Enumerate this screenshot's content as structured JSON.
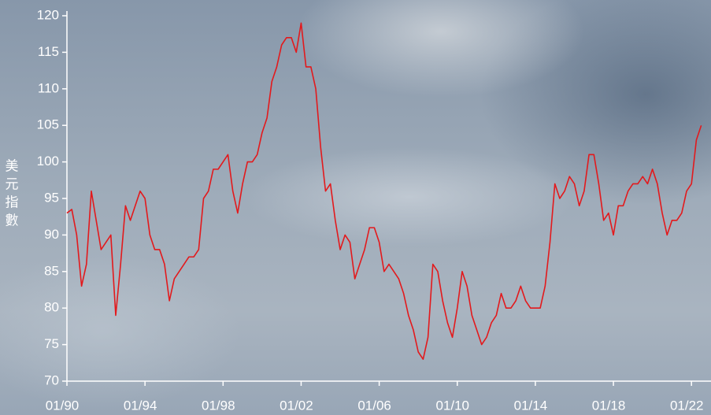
{
  "chart_data": {
    "type": "line",
    "y_label": [
      "美",
      "元",
      "指",
      "數"
    ],
    "x": [
      1990,
      1990.25,
      1990.5,
      1990.75,
      1991,
      1991.25,
      1991.5,
      1991.75,
      1992,
      1992.25,
      1992.5,
      1992.75,
      1993,
      1993.25,
      1993.5,
      1993.75,
      1994,
      1994.25,
      1994.5,
      1994.75,
      1995,
      1995.25,
      1995.5,
      1995.75,
      1996,
      1996.25,
      1996.5,
      1996.75,
      1997,
      1997.25,
      1997.5,
      1997.75,
      1998,
      1998.25,
      1998.5,
      1998.75,
      1999,
      1999.25,
      1999.5,
      1999.75,
      2000,
      2000.25,
      2000.5,
      2000.75,
      2001,
      2001.25,
      2001.5,
      2001.75,
      2002,
      2002.25,
      2002.5,
      2002.75,
      2003,
      2003.25,
      2003.5,
      2003.75,
      2004,
      2004.25,
      2004.5,
      2004.75,
      2005,
      2005.25,
      2005.5,
      2005.75,
      2006,
      2006.25,
      2006.5,
      2006.75,
      2007,
      2007.25,
      2007.5,
      2007.75,
      2008,
      2008.25,
      2008.5,
      2008.75,
      2009,
      2009.25,
      2009.5,
      2009.75,
      2010,
      2010.25,
      2010.5,
      2010.75,
      2011,
      2011.25,
      2011.5,
      2011.75,
      2012,
      2012.25,
      2012.5,
      2012.75,
      2013,
      2013.25,
      2013.5,
      2013.75,
      2014,
      2014.25,
      2014.5,
      2014.75,
      2015,
      2015.25,
      2015.5,
      2015.75,
      2016,
      2016.25,
      2016.5,
      2016.75,
      2017,
      2017.25,
      2017.5,
      2017.75,
      2018,
      2018.25,
      2018.5,
      2018.75,
      2019,
      2019.25,
      2019.5,
      2019.75,
      2020,
      2020.25,
      2020.5,
      2020.75,
      2021,
      2021.25,
      2021.5,
      2021.75,
      2022,
      2022.25,
      2022.5
    ],
    "series": [
      {
        "color": "#e3191c",
        "values": [
          93,
          93.5,
          90,
          83,
          86,
          96,
          92,
          88,
          89,
          90,
          79,
          86,
          94,
          92,
          94,
          96,
          95,
          90,
          88,
          88,
          86,
          81,
          84,
          85,
          86,
          87,
          87,
          88,
          95,
          96,
          99,
          99,
          100,
          101,
          96,
          93,
          97,
          100,
          100,
          101,
          104,
          106,
          111,
          113,
          116,
          117,
          117,
          115,
          119,
          113,
          113,
          110,
          102,
          96,
          97,
          92,
          88,
          90,
          89,
          84,
          86,
          88,
          91,
          91,
          89,
          85,
          86,
          85,
          84,
          82,
          79,
          77,
          74,
          73,
          76,
          86,
          85,
          81,
          78,
          76,
          80,
          85,
          83,
          79,
          77,
          75,
          76,
          78,
          79,
          82,
          80,
          80,
          81,
          83,
          81,
          80,
          80,
          80,
          83,
          89,
          97,
          95,
          96,
          98,
          97,
          94,
          96,
          101,
          101,
          97,
          92,
          93,
          90,
          94,
          94,
          96,
          97,
          97,
          98,
          97,
          99,
          97,
          93,
          90,
          92,
          92,
          93,
          96,
          97,
          103,
          105
        ]
      }
    ],
    "xlim": [
      1990,
      2023
    ],
    "ylim": [
      70,
      120
    ],
    "xticks": [
      {
        "value": 1990,
        "label": "01/90"
      },
      {
        "value": 1994,
        "label": "01/94"
      },
      {
        "value": 1998,
        "label": "01/98"
      },
      {
        "value": 2002,
        "label": "01/02"
      },
      {
        "value": 2006,
        "label": "01/06"
      },
      {
        "value": 2010,
        "label": "01/10"
      },
      {
        "value": 2014,
        "label": "01/14"
      },
      {
        "value": 2018,
        "label": "01/18"
      },
      {
        "value": 2022,
        "label": "01/22"
      }
    ],
    "yticks": [
      70,
      75,
      80,
      85,
      90,
      95,
      100,
      105,
      110,
      115,
      120
    ]
  }
}
